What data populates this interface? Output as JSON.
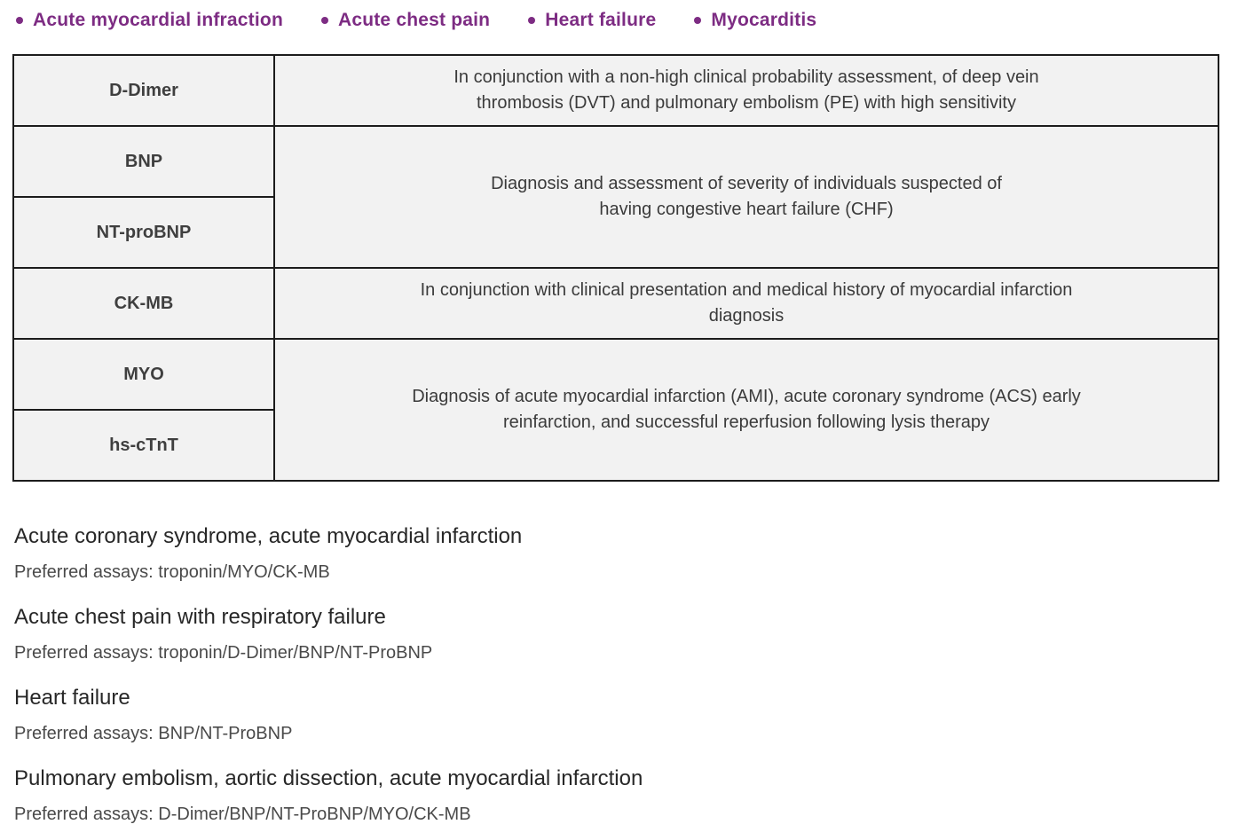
{
  "legend": {
    "accent_color": "#7d2c83",
    "items": [
      {
        "label": "Acute myocardial infraction"
      },
      {
        "label": "Acute chest pain"
      },
      {
        "label": "Heart failure"
      },
      {
        "label": "Myocarditis"
      }
    ]
  },
  "table": {
    "cell_background": "#f2f2f2",
    "border_color": "#1c1c1c",
    "groups": [
      {
        "markers": [
          "D-Dimer"
        ],
        "description": "In conjunction with a non-high clinical probability assessment, of deep vein thrombosis (DVT) and pulmonary embolism (PE) with high sensitivity"
      },
      {
        "markers": [
          "BNP",
          "NT-proBNP"
        ],
        "description": "Diagnosis and assessment of severity of individuals suspected of having congestive heart failure (CHF)"
      },
      {
        "markers": [
          "CK-MB"
        ],
        "description": "In conjunction with clinical presentation and medical history of myocardial infarction diagnosis"
      },
      {
        "markers": [
          "MYO",
          "hs-cTnT"
        ],
        "description": "Diagnosis of acute myocardial infarction (AMI), acute coronary syndrome (ACS) early reinfarction, and successful reperfusion following lysis therapy"
      }
    ]
  },
  "sections": [
    {
      "title": "Acute coronary syndrome, acute myocardial infarction",
      "assays": "Preferred assays: troponin/MYO/CK-MB"
    },
    {
      "title": "Acute chest pain with respiratory failure",
      "assays": "Preferred assays: troponin/D-Dimer/BNP/NT-ProBNP"
    },
    {
      "title": "Heart failure",
      "assays": "Preferred assays: BNP/NT-ProBNP"
    },
    {
      "title": "Pulmonary embolism, aortic dissection, acute myocardial infarction",
      "assays": "Preferred assays: D-Dimer/BNP/NT-ProBNP/MYO/CK-MB"
    }
  ]
}
